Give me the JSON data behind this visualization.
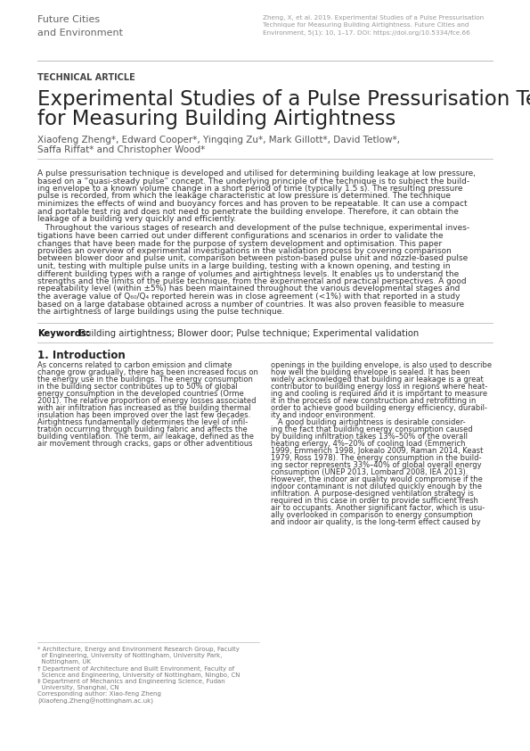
{
  "background_color": "#ffffff",
  "header_journal": "Future Cities\nand Environment",
  "header_citation": "Zheng, X, et al. 2019. Experimental Studies of a Pulse Pressurisation\nTechnique for Measuring Building Airtightness. Future Cities and\nEnvironment, 5(1): 10, 1–17. DOI: https://doi.org/10.5334/fce.66",
  "article_type": "TECHNICAL ARTICLE",
  "title_line1": "Experimental Studies of a Pulse Pressurisation Technique",
  "title_line2": "for Measuring Building Airtightness",
  "authors_line1": "Xiaofeng Zheng*, Edward Cooper*, Yingqing Zu*, Mark Gillott*, David Tetlow*,",
  "authors_line2": "Saffa Riffat* and Christopher Wood*",
  "abstract_para1": [
    "A pulse pressurisation technique is developed and utilised for determining building leakage at low pressure,",
    "based on a “quasi-steady pulse” concept. The underlying principle of the technique is to subject the build-",
    "ing envelope to a known volume change in a short period of time (typically 1.5 s). The resulting pressure",
    "pulse is recorded, from which the leakage characteristic at low pressure is determined. The technique",
    "minimizes the effects of wind and buoyancy forces and has proven to be repeatable. It can use a compact",
    "and portable test rig and does not need to penetrate the building envelope. Therefore, it can obtain the",
    "leakage of a building very quickly and efficiently."
  ],
  "abstract_para2": [
    "   Throughout the various stages of research and development of the pulse technique, experimental inves-",
    "tigations have been carried out under different configurations and scenarios in order to validate the",
    "changes that have been made for the purpose of system development and optimisation. This paper",
    "provides an overview of experimental investigations in the validation process by covering comparison",
    "between blower door and pulse unit, comparison between piston-based pulse unit and nozzle-based pulse",
    "unit, testing with multiple pulse units in a large building, testing with a known opening, and testing in",
    "different building types with a range of volumes and airtightness levels. It enables us to understand the",
    "strengths and the limits of the pulse technique, from the experimental and practical perspectives. A good",
    "repeatability level (within ±5%) has been maintained throughout the various developmental stages and",
    "the average value of Q₆₀/Q₄ reported herein was in close agreement (<1%) with that reported in a study",
    "based on a large database obtained across a number of countries. It was also proven feasible to measure",
    "the airtightness of large buildings using the pulse technique."
  ],
  "keywords_label": "Keywords:",
  "keywords": " Building airtightness; Blower door; Pulse technique; Experimental validation",
  "section_title": "1. Introduction",
  "intro_col1": [
    "As concerns related to carbon emission and climate",
    "change grow gradually, there has been increased focus on",
    "the energy use in the buildings. The energy consumption",
    "in the building sector contributes up to 50% of global",
    "energy consumption in the developed countries (Orme",
    "2001). The relative proportion of energy losses associated",
    "with air infiltration has increased as the building thermal",
    "insulation has been improved over the last few decades.",
    "Airtightness fundamentally determines the level of infil-",
    "tration occurring through building fabric and affects the",
    "building ventilation. The term, air leakage, defined as the",
    "air movement through cracks, gaps or other adventitious"
  ],
  "intro_col2": [
    "openings in the building envelope, is also used to describe",
    "how well the building envelope is sealed. It has been",
    "widely acknowledged that building air leakage is a great",
    "contributor to building energy loss in regions where heat-",
    "ing and cooling is required and it is important to measure",
    "it in the process of new construction and retrofitting in",
    "order to achieve good building energy efficiency, durabil-",
    "ity and indoor environment.",
    "   A good building airtightness is desirable consider-",
    "ing the fact that building energy consumption caused",
    "by building infiltration takes 13%–50% of the overall",
    "heating energy, 4%–20% of cooling load (Emmerich",
    "1999, Emmerich 1998, Jokealo 2009, Raman 2014, Keast",
    "1979, Ross 1978). The energy consumption in the build-",
    "ing sector represents 33%–40% of global overall energy",
    "consumption (UNEP 2013, Lombard 2008, IEA 2013).",
    "However, the indoor air quality would compromise if the",
    "indoor contaminant is not diluted quickly enough by the",
    "infiltration. A purpose-designed ventilation strategy is",
    "required in this case in order to provide sufficient fresh",
    "air to occupants. Another significant factor, which is usu-",
    "ally overlooked in comparison to energy consumption",
    "and indoor air quality, is the long-term effect caused by"
  ],
  "footnote": [
    "* Architecture, Energy and Environment Research Group, Faculty",
    "  of Engineering, University of Nottingham, University Park,",
    "  Nottingham, UK",
    "† Department of Architecture and Built Environment, Faculty of",
    "  Science and Engineering, University of Nottingham, Ningbo, CN",
    "‡ Department of Mechanics and Engineering Science, Fudan",
    "  University, Shanghai, CN",
    "Corresponding author: Xiao-feng Zheng",
    "(Xiaofeng.Zheng@nottingham.ac.uk)"
  ],
  "line_color": "#bbbbbb",
  "journal_color": "#666666",
  "citation_color": "#999999",
  "article_type_color": "#444444",
  "title_color": "#222222",
  "author_color": "#555555",
  "body_color": "#333333",
  "keyword_label_color": "#111111",
  "section_color": "#222222",
  "footnote_color": "#777777"
}
